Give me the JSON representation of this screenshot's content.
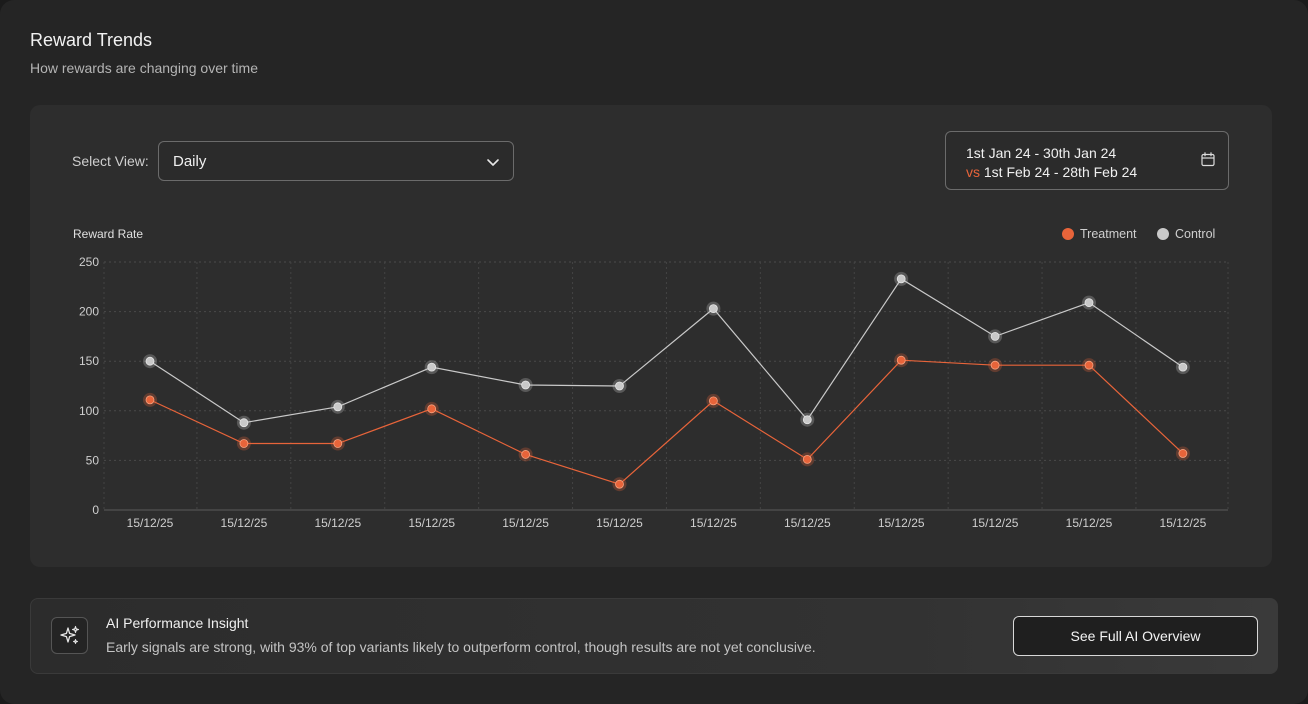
{
  "header": {
    "title": "Reward Trends",
    "subtitle": "How rewards are changing over time"
  },
  "controls": {
    "view_label": "Select View:",
    "view_value": "Daily",
    "date_primary": "1st Jan 24 - 30th Jan 24",
    "date_vs": "vs",
    "date_compare": "1st Feb 24 - 28th Feb 24"
  },
  "chart_data": {
    "type": "line",
    "ylabel": "Reward Rate",
    "ylim": [
      0,
      250
    ],
    "yticks": [
      0,
      50,
      100,
      150,
      200,
      250
    ],
    "grid": true,
    "legend_position": "top-right",
    "categories": [
      "15/12/25",
      "15/12/25",
      "15/12/25",
      "15/12/25",
      "15/12/25",
      "15/12/25",
      "15/12/25",
      "15/12/25",
      "15/12/25",
      "15/12/25",
      "15/12/25",
      "15/12/25"
    ],
    "series": [
      {
        "name": "Treatment",
        "color": "#e8643a",
        "values": [
          111,
          67,
          67,
          102,
          56,
          26,
          110,
          51,
          151,
          146,
          146,
          57
        ]
      },
      {
        "name": "Control",
        "color": "#c9c9c9",
        "values": [
          150,
          88,
          104,
          144,
          126,
          125,
          203,
          91,
          233,
          175,
          209,
          144
        ]
      }
    ]
  },
  "insight": {
    "icon": "sparkles-icon",
    "title": "AI Performance Insight",
    "text": "Early signals are strong, with 93% of top variants likely to outperform control, though results are not yet conclusive.",
    "button_label": "See Full AI Overview"
  },
  "colors": {
    "accent": "#e8643a",
    "control": "#c9c9c9",
    "background": "#252525"
  }
}
